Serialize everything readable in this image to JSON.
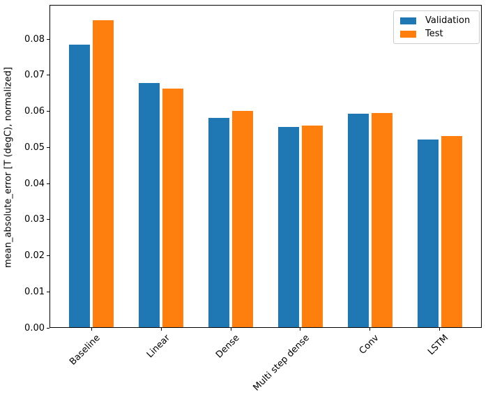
{
  "chart_data": {
    "type": "bar",
    "title": "",
    "xlabel": "",
    "ylabel": "mean_absolute_error [T (degC), normalized]",
    "categories": [
      "Baseline",
      "Linear",
      "Dense",
      "Multi step dense",
      "Conv",
      "LSTM"
    ],
    "series": [
      {
        "name": "Validation",
        "color": "#1f77b4",
        "values": [
          0.0785,
          0.0678,
          0.0581,
          0.0557,
          0.0593,
          0.0521
        ]
      },
      {
        "name": "Test",
        "color": "#ff7f0e",
        "values": [
          0.0852,
          0.0663,
          0.0602,
          0.056,
          0.0595,
          0.0532
        ]
      }
    ],
    "ylim": [
      0,
      0.0895
    ],
    "yticks": [
      0.0,
      0.01,
      0.02,
      0.03,
      0.04,
      0.05,
      0.06,
      0.07,
      0.08
    ],
    "ytick_labels": [
      "0.00",
      "0.01",
      "0.02",
      "0.03",
      "0.04",
      "0.05",
      "0.06",
      "0.07",
      "0.08"
    ],
    "xtick_rotation_deg": 45,
    "grid": false,
    "legend_position": "upper right",
    "bar_width_units": 0.3,
    "bar_offset_units": 0.17,
    "spine_color": "#000000",
    "background_color": "#ffffff"
  }
}
